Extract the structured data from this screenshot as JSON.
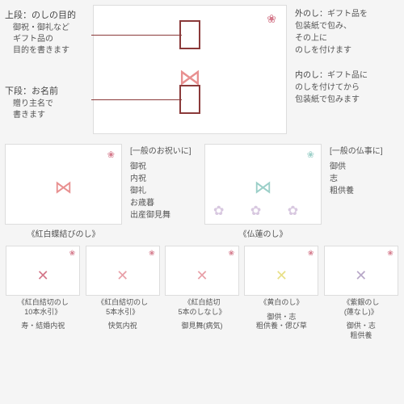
{
  "top": {
    "left": {
      "upper": {
        "title": "上段：のしの目的",
        "desc": "御祝・御礼など\nギフト品の\n目的を書きます"
      },
      "lower": {
        "title": "下段：お名前",
        "desc": "贈り主名で\n書きます"
      }
    },
    "right": {
      "outer": {
        "title": "外のし：",
        "desc": "ギフト品を\n包装紙で包み、\nその上に\nのしを付けます"
      },
      "inner": {
        "title": "内のし：",
        "desc": "ギフト品に\nのしを付けてから\n包装紙で包みます"
      }
    },
    "colors": {
      "box_border": "#8b3a3a",
      "bow": "#e89090",
      "mark": "#d4788a"
    }
  },
  "mid": {
    "left": {
      "header": "[一般のお祝いに]",
      "items": "御祝\n内祝\n御礼\nお歳暮\n出産御見舞",
      "caption": "《紅白蝶結びのし》",
      "bow_color": "#e89090"
    },
    "right": {
      "header": "[一般の仏事に]",
      "items": "御供\n志\n粗供養",
      "caption": "《仏蓮のし》",
      "bow_color": "#9bcfc8"
    }
  },
  "bottom": [
    {
      "title": "《紅白結切のし\n10本水引》",
      "desc": "寿・結婚内祝",
      "knot_color": "#d4788a"
    },
    {
      "title": "《紅白結切のし\n5本水引》",
      "desc": "快気内祝",
      "knot_color": "#e8a0a8"
    },
    {
      "title": "《紅白結切\n5本のしなし》",
      "desc": "御見舞(病気)",
      "knot_color": "#e8a0a8"
    },
    {
      "title": "《黄白のし》",
      "desc": "御供・志\n粗供養・偲び草",
      "knot_color": "#e8e088"
    },
    {
      "title": "《紫銀のし\n(蓮なし)》",
      "desc": "御供・志\n粗供養",
      "knot_color": "#b8a8c8"
    }
  ]
}
